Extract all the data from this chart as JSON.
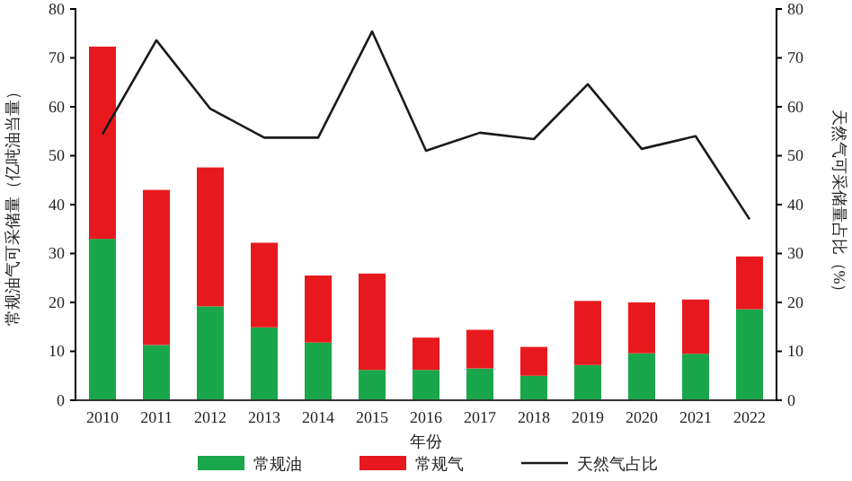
{
  "chart_data": {
    "type": "bar",
    "stacked": true,
    "xlabel": "年份",
    "ylabel": "常规油气可采储量（亿吨油当量）",
    "y2label": "天然气可采储量占比（%）",
    "categories": [
      "2010",
      "2011",
      "2012",
      "2013",
      "2014",
      "2015",
      "2016",
      "2017",
      "2018",
      "2019",
      "2020",
      "2021",
      "2022"
    ],
    "series": [
      {
        "name": "常规油",
        "color": "#1aa64a",
        "values": [
          33,
          11.3,
          19.2,
          14.9,
          11.8,
          6.2,
          6.2,
          6.5,
          5,
          7.2,
          9.6,
          9.5,
          18.6
        ]
      },
      {
        "name": "常规气",
        "color": "#e8191e",
        "values": [
          39.3,
          31.7,
          28.4,
          17.3,
          13.7,
          19.7,
          6.6,
          7.9,
          5.9,
          13.1,
          10.4,
          11.1,
          10.8
        ]
      },
      {
        "name": "天然气占比",
        "type": "line",
        "axis": "y2",
        "color": "#1a1a1a",
        "values": [
          54.4,
          73.6,
          59.6,
          53.7,
          53.7,
          75.4,
          51,
          54.7,
          53.4,
          64.6,
          51.4,
          54,
          37
        ]
      }
    ],
    "ylim": [
      0,
      80
    ],
    "yticks": [
      0,
      10,
      20,
      30,
      40,
      50,
      60,
      70,
      80
    ],
    "y2lim": [
      0,
      80
    ],
    "y2ticks": [
      0,
      10,
      20,
      30,
      40,
      50,
      60,
      70,
      80
    ],
    "legend": "bottom",
    "grid": false,
    "marker": "none",
    "line_style": "solid"
  }
}
